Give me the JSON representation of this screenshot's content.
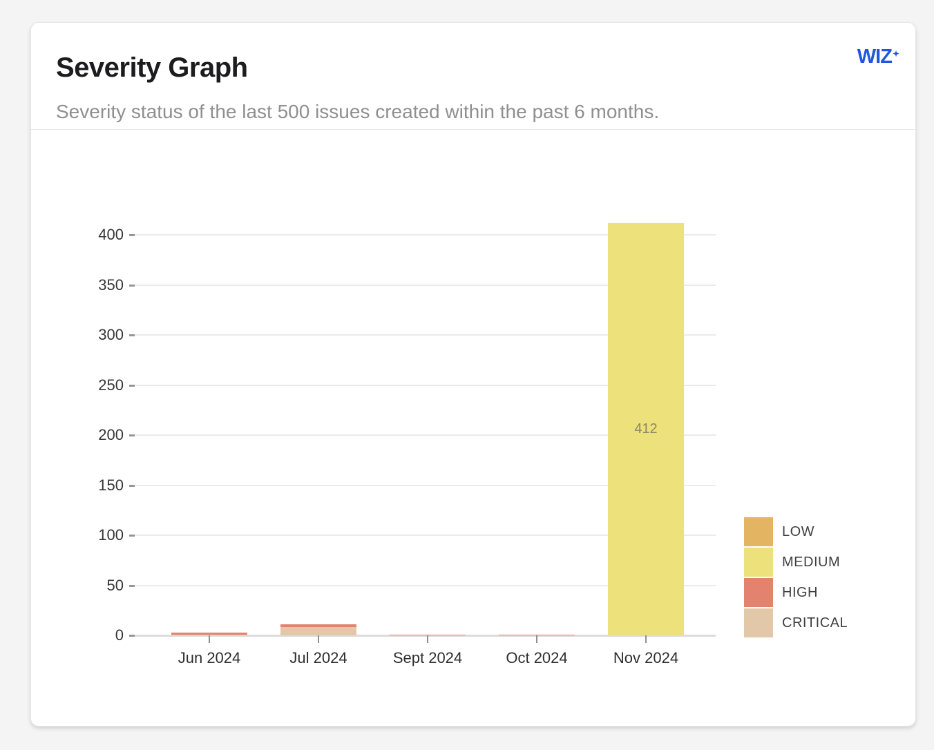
{
  "card": {
    "title": "Severity Graph",
    "subtitle": "Severity status of the last 500 issues created within the past 6 months.",
    "logo": {
      "text": "WIZ",
      "sparkle": "✦",
      "color": "#2156e0"
    }
  },
  "chart_data": {
    "type": "bar",
    "stacked": true,
    "title": "Severity Graph",
    "categories": [
      "Jun 2024",
      "Jul 2024",
      "Sept 2024",
      "Oct 2024",
      "Nov 2024"
    ],
    "series": [
      {
        "name": "LOW",
        "color": "#e3b462",
        "values": [
          0,
          0,
          0,
          0,
          0
        ]
      },
      {
        "name": "MEDIUM",
        "color": "#ede17b",
        "values": [
          0,
          0,
          0,
          0,
          412
        ]
      },
      {
        "name": "HIGH",
        "color": "#e3836f",
        "values": [
          2,
          3,
          1,
          1,
          0
        ]
      },
      {
        "name": "CRITICAL",
        "color": "#e3c7a9",
        "values": [
          1,
          8,
          0,
          0,
          0
        ]
      }
    ],
    "stack_order_bottom_to_top": [
      "CRITICAL",
      "HIGH",
      "MEDIUM",
      "LOW"
    ],
    "y_ticks": [
      0,
      50,
      100,
      150,
      200,
      250,
      300,
      350,
      400
    ],
    "ylim": [
      0,
      420
    ],
    "xlabel": "",
    "ylabel": "",
    "grid": true,
    "legend_position": "right",
    "bar_labels": [
      {
        "category": "Nov 2024",
        "series": "MEDIUM",
        "text": "412"
      }
    ]
  }
}
